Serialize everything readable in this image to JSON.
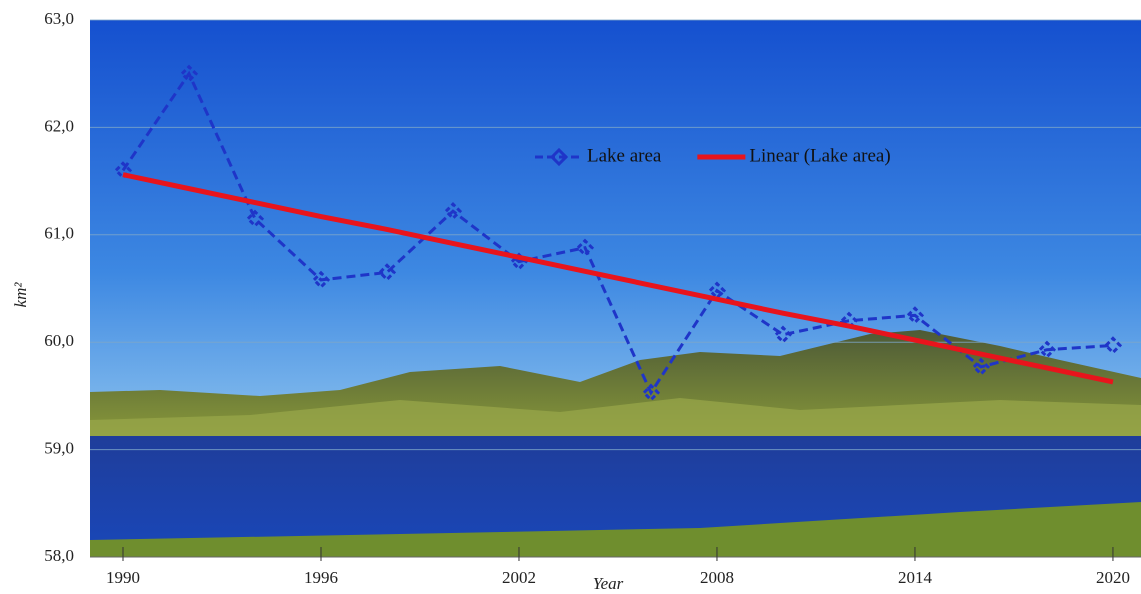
{
  "chart_data": {
    "type": "line",
    "x_label": "Year",
    "y_label": "km²",
    "x": [
      1990,
      1992,
      1994,
      1996,
      1998,
      2000,
      2002,
      2004,
      2006,
      2008,
      2010,
      2012,
      2014,
      2016,
      2018,
      2020
    ],
    "series": [
      {
        "name": "Lake area",
        "color": "#1f35c8",
        "style": "dashed",
        "marker": true,
        "values": [
          61.6,
          62.5,
          61.15,
          60.58,
          60.65,
          61.22,
          60.75,
          60.88,
          59.53,
          60.48,
          60.07,
          60.2,
          60.25,
          59.77,
          59.93,
          59.97
        ]
      },
      {
        "name": "Linear (Lake area)",
        "color": "#e8141c",
        "style": "solid",
        "marker": false,
        "values": [
          61.56,
          61.43,
          61.3,
          61.17,
          61.05,
          60.92,
          60.79,
          60.66,
          60.53,
          60.4,
          60.27,
          60.15,
          60.02,
          59.89,
          59.76,
          59.63
        ]
      }
    ],
    "xlim": [
      1989,
      2020.85
    ],
    "xticks": [
      1990,
      1996,
      2002,
      2008,
      2014,
      2020
    ],
    "ylim": [
      58,
      63
    ],
    "yticks": [
      {
        "value": 58,
        "label": "58,0"
      },
      {
        "value": 59,
        "label": "59,0"
      },
      {
        "value": 60,
        "label": "60,0"
      },
      {
        "value": 61,
        "label": "61,0"
      },
      {
        "value": 62,
        "label": "62,0"
      },
      {
        "value": 63,
        "label": "63,0"
      }
    ],
    "grid": true,
    "legend": "top"
  }
}
